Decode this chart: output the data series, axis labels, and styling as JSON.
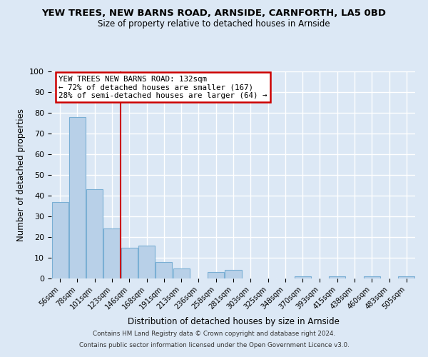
{
  "title": "YEW TREES, NEW BARNS ROAD, ARNSIDE, CARNFORTH, LA5 0BD",
  "subtitle": "Size of property relative to detached houses in Arnside",
  "xlabel": "Distribution of detached houses by size in Arnside",
  "ylabel": "Number of detached properties",
  "bin_labels": [
    "56sqm",
    "78sqm",
    "101sqm",
    "123sqm",
    "146sqm",
    "168sqm",
    "191sqm",
    "213sqm",
    "236sqm",
    "258sqm",
    "281sqm",
    "303sqm",
    "325sqm",
    "348sqm",
    "370sqm",
    "393sqm",
    "415sqm",
    "438sqm",
    "460sqm",
    "483sqm",
    "505sqm"
  ],
  "bar_heights": [
    37,
    78,
    43,
    24,
    15,
    16,
    8,
    5,
    0,
    3,
    4,
    0,
    0,
    0,
    1,
    0,
    1,
    0,
    1,
    0,
    1
  ],
  "bar_color": "#b8d0e8",
  "bar_edge_color": "#7aafd4",
  "vline_x": 3.5,
  "vline_color": "#cc0000",
  "ylim": [
    0,
    100
  ],
  "yticks": [
    0,
    10,
    20,
    30,
    40,
    50,
    60,
    70,
    80,
    90,
    100
  ],
  "annotation_title": "YEW TREES NEW BARNS ROAD: 132sqm",
  "annotation_line1": "← 72% of detached houses are smaller (167)",
  "annotation_line2": "28% of semi-detached houses are larger (64) →",
  "annotation_box_color": "#ffffff",
  "annotation_box_edge": "#cc0000",
  "bg_color": "#dce8f5",
  "grid_color": "#ffffff",
  "footer1": "Contains HM Land Registry data © Crown copyright and database right 2024.",
  "footer2": "Contains public sector information licensed under the Open Government Licence v3.0."
}
